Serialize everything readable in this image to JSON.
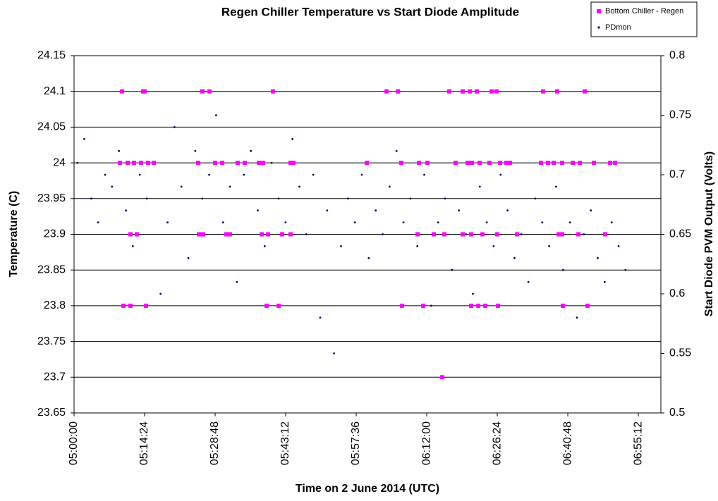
{
  "chart_data": {
    "type": "scatter",
    "title": "Regen Chiller Temperature vs Start Diode Amplitude",
    "x_label": "Time on 2 June 2014 (UTC)",
    "y_label": "Temperature (C)",
    "y2_label": "Start Diode PVM Output (Volts)",
    "xlim": [
      18000,
      25188
    ],
    "xticks": [
      {
        "value": 18000,
        "label": "05:00:00"
      },
      {
        "value": 18864,
        "label": "05:14:24"
      },
      {
        "value": 19728,
        "label": "05:28:48"
      },
      {
        "value": 20592,
        "label": "05:43:12"
      },
      {
        "value": 21456,
        "label": "05:57:36"
      },
      {
        "value": 22320,
        "label": "06:12:00"
      },
      {
        "value": 23184,
        "label": "06:26:24"
      },
      {
        "value": 24048,
        "label": "06:40:48"
      },
      {
        "value": 24912,
        "label": "06:55:12"
      }
    ],
    "ylim": [
      23.65,
      24.15
    ],
    "yticks": [
      23.65,
      23.7,
      23.75,
      23.8,
      23.85,
      23.9,
      23.95,
      24,
      24.05,
      24.1,
      24.15
    ],
    "y2lim": [
      0.5,
      0.8
    ],
    "y2ticks": [
      0.5,
      0.55,
      0.6,
      0.65,
      0.7,
      0.75,
      0.8
    ],
    "grid": true,
    "legend": "upper right",
    "series": [
      {
        "name": "Bottom Chiller - Regen",
        "color": "#ff00ff",
        "axis": "y",
        "x": [
          18588,
          18847,
          18864,
          19572,
          19659,
          20436,
          21828,
          21966,
          22596,
          22761,
          22847,
          22933,
          23115,
          23175,
          23746,
          23918,
          24255,
          18562,
          18657,
          18734,
          18821,
          18907,
          18976,
          19521,
          19728,
          19814,
          20004,
          20091,
          20264,
          20316,
          20652,
          20687,
          21586,
          22009,
          22225,
          22329,
          22674,
          22821,
          22873,
          22968,
          23089,
          23219,
          23296,
          23340,
          23720,
          23806,
          23875,
          23979,
          24109,
          24195,
          24368,
          24566,
          24627,
          18691,
          18769,
          19529,
          19581,
          19866,
          19909,
          20298,
          20376,
          20549,
          20652,
          22208,
          22406,
          22536,
          22761,
          22864,
          23003,
          23184,
          23426,
          23936,
          23979,
          24178,
          24506,
          18605,
          18691,
          18881,
          20359,
          20506,
          22018,
          22277,
          22864,
          22951,
          23037,
          23193,
          23988,
          24290,
          22510
        ],
        "values": [
          24.1,
          24.1,
          24.1,
          24.1,
          24.1,
          24.1,
          24.1,
          24.1,
          24.1,
          24.1,
          24.1,
          24.1,
          24.1,
          24.1,
          24.1,
          24.1,
          24.1,
          24,
          24,
          24,
          24,
          24,
          24,
          24,
          24,
          24,
          24,
          24,
          24,
          24,
          24,
          24,
          24,
          24,
          24,
          24,
          24,
          24,
          24,
          24,
          24,
          24,
          24,
          24,
          24,
          24,
          24,
          24,
          24,
          24,
          24,
          24,
          24,
          23.9,
          23.9,
          23.9,
          23.9,
          23.9,
          23.9,
          23.9,
          23.9,
          23.9,
          23.9,
          23.9,
          23.9,
          23.9,
          23.9,
          23.9,
          23.9,
          23.9,
          23.9,
          23.9,
          23.9,
          23.9,
          23.9,
          23.8,
          23.8,
          23.8,
          23.8,
          23.8,
          23.8,
          23.8,
          23.8,
          23.8,
          23.8,
          23.8,
          23.8,
          23.8,
          23.7
        ]
      },
      {
        "name": "PDmon",
        "color": "#000066",
        "axis": "y2",
        "x": [
          18040,
          18125,
          18210,
          18295,
          18380,
          18465,
          18550,
          18635,
          18720,
          18805,
          18890,
          18975,
          19060,
          19145,
          19230,
          19315,
          19400,
          19485,
          19570,
          19655,
          19740,
          19825,
          19910,
          19995,
          20080,
          20165,
          20250,
          20335,
          20420,
          20505,
          20590,
          20675,
          20760,
          20845,
          20930,
          21015,
          21100,
          21185,
          21270,
          21355,
          21440,
          21525,
          21610,
          21695,
          21780,
          21865,
          21950,
          22035,
          22120,
          22205,
          22290,
          22375,
          22460,
          22545,
          22630,
          22715,
          22800,
          22885,
          22970,
          23055,
          23140,
          23225,
          23310,
          23395,
          23480,
          23565,
          23650,
          23735,
          23820,
          23905,
          23990,
          24075,
          24160,
          24245,
          24330,
          24415,
          24500,
          24585,
          24670,
          24755
        ],
        "values": [
          0.71,
          0.73,
          0.68,
          0.66,
          0.7,
          0.69,
          0.72,
          0.67,
          0.64,
          0.7,
          0.68,
          0.71,
          0.6,
          0.66,
          0.74,
          0.69,
          0.63,
          0.72,
          0.68,
          0.7,
          0.75,
          0.66,
          0.69,
          0.61,
          0.7,
          0.72,
          0.67,
          0.64,
          0.71,
          0.68,
          0.66,
          0.73,
          0.69,
          0.65,
          0.7,
          0.58,
          0.67,
          0.55,
          0.64,
          0.68,
          0.66,
          0.7,
          0.63,
          0.67,
          0.65,
          0.69,
          0.72,
          0.66,
          0.68,
          0.64,
          0.7,
          0.59,
          0.66,
          0.68,
          0.62,
          0.67,
          0.65,
          0.6,
          0.69,
          0.66,
          0.64,
          0.7,
          0.67,
          0.63,
          0.65,
          0.61,
          0.68,
          0.66,
          0.64,
          0.69,
          0.62,
          0.66,
          0.58,
          0.65,
          0.67,
          0.63,
          0.61,
          0.66,
          0.64,
          0.62
        ]
      }
    ]
  }
}
